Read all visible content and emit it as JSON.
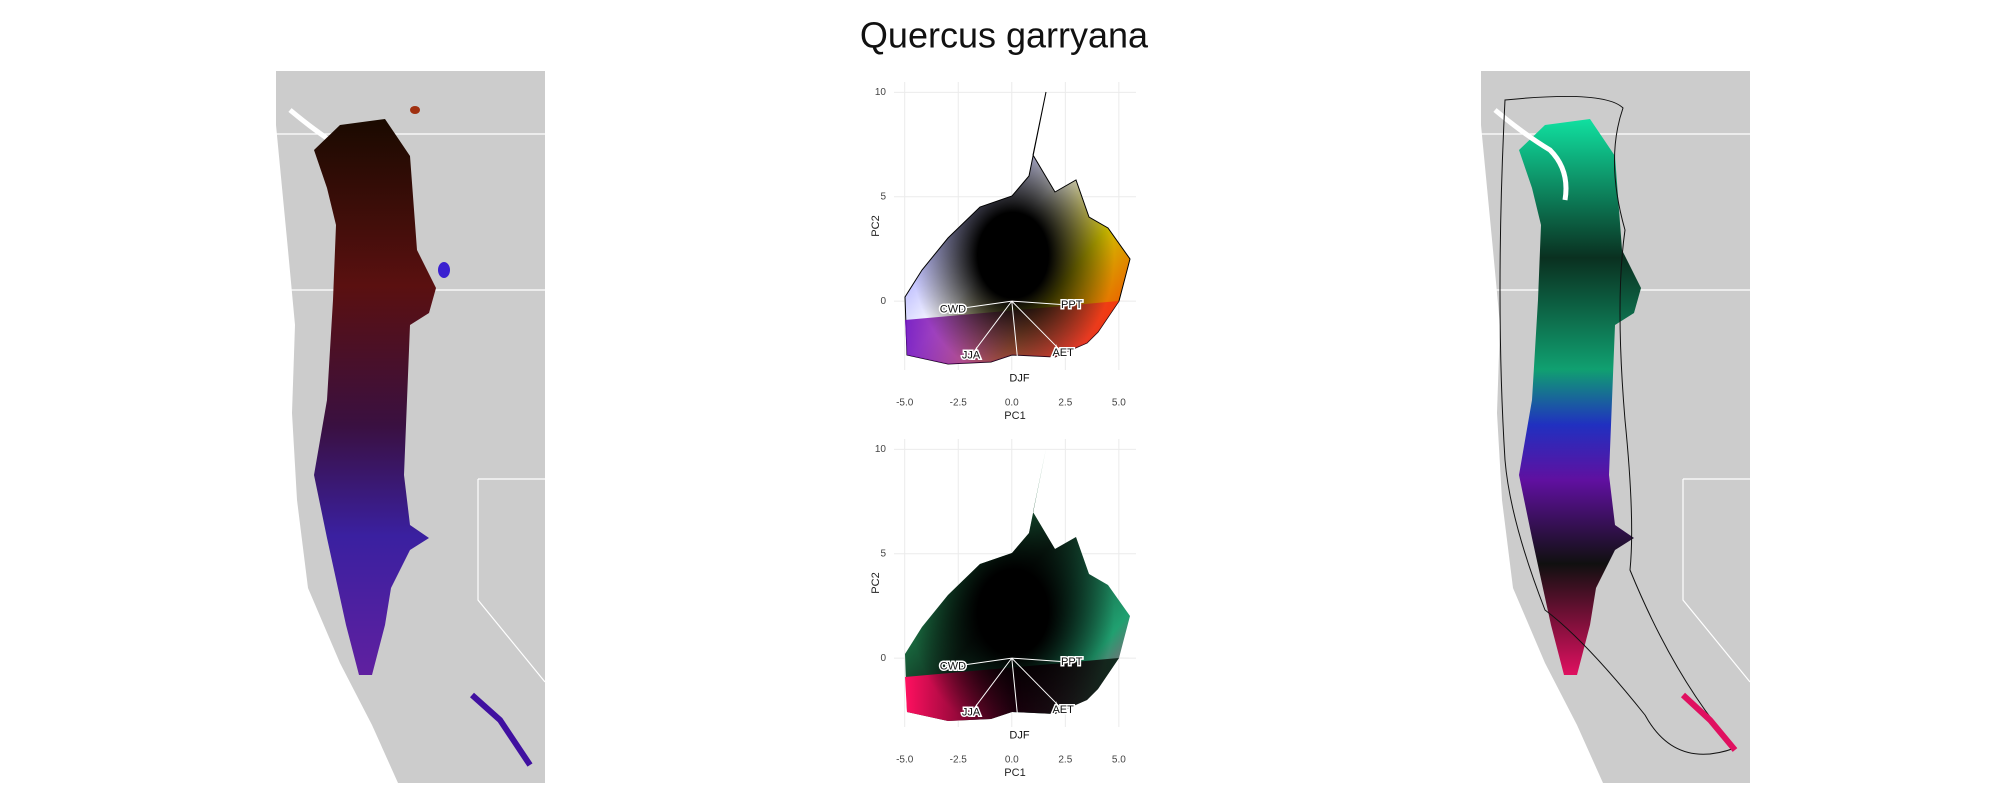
{
  "title": "Quercus garryana",
  "chart_data": [
    {
      "type": "scatter",
      "xlabel": "PC1",
      "ylabel": "PC2",
      "xlim": [
        -5.5,
        5.8
      ],
      "ylim": [
        -3.3,
        10.5
      ],
      "xticks": [
        {
          "value": -5,
          "label": "-5.0"
        },
        {
          "value": -2.5,
          "label": "-2.5"
        },
        {
          "value": 0,
          "label": "0.0"
        },
        {
          "value": 2.5,
          "label": "2.5"
        },
        {
          "value": 5,
          "label": "5.0"
        }
      ],
      "yticks": [
        0,
        5,
        10
      ],
      "grid": true,
      "vectors": [
        {
          "label": "CWD",
          "x": -2.75,
          "y": -0.4
        },
        {
          "label": "PPT",
          "x": 2.8,
          "y": -0.2
        },
        {
          "label": "AET",
          "x": 2.4,
          "y": -2.5
        },
        {
          "label": "JJA",
          "x": -1.9,
          "y": -2.6
        },
        {
          "label": "DJF",
          "x": 0.36,
          "y": -3.7
        }
      ]
    },
    {
      "type": "scatter",
      "xlabel": "PC1",
      "ylabel": "PC2",
      "xlim": [
        -5.5,
        5.8
      ],
      "ylim": [
        -3.3,
        10.5
      ],
      "xticks": [
        {
          "value": -5,
          "label": "-5.0"
        },
        {
          "value": -2.5,
          "label": "-2.5"
        },
        {
          "value": 0,
          "label": "0.0"
        },
        {
          "value": 2.5,
          "label": "2.5"
        },
        {
          "value": 5,
          "label": "5.0"
        }
      ],
      "yticks": [
        0,
        5,
        10
      ],
      "grid": true,
      "vectors": [
        {
          "label": "CWD",
          "x": -2.75,
          "y": -0.4
        },
        {
          "label": "PPT",
          "x": 2.8,
          "y": -0.2
        },
        {
          "label": "AET",
          "x": 2.4,
          "y": -2.5
        },
        {
          "label": "JJA",
          "x": -1.9,
          "y": -2.6
        },
        {
          "label": "DJF",
          "x": 0.36,
          "y": -3.7
        }
      ]
    }
  ]
}
